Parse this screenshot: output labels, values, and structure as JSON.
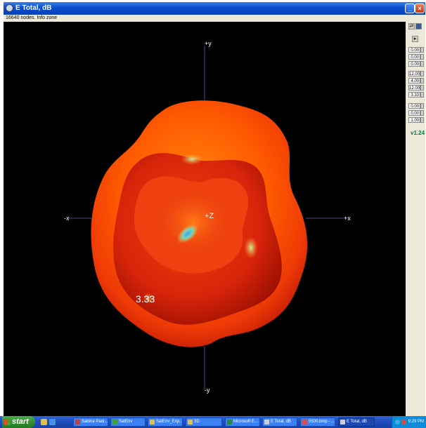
{
  "window": {
    "title": "E Total, dB",
    "status_text": "16640 nodes.  Info zone"
  },
  "plot": {
    "axes": {
      "pos_y": "+y",
      "neg_y": "-y",
      "neg_x": "-x",
      "pos_x": "+x",
      "pos_z": "+Z"
    },
    "value_label": "3.33",
    "colors": {
      "background": "#000000",
      "axis_line": "#4a4a8a",
      "lobe_outer": "#ff5a00",
      "lobe_inner": "#e82a06",
      "lobe_highlight": "#ff9a1e",
      "lobe_dark": "#8c0a00",
      "null_cyan": "#7ad6b8"
    }
  },
  "side_panel": {
    "fields": [
      {
        "value": "0.00"
      },
      {
        "value": "0.00"
      },
      {
        "value": "0.00"
      },
      {
        "value": "12.00"
      },
      {
        "value": "4.00"
      },
      {
        "value": "12.00"
      },
      {
        "value": "3.33"
      },
      {
        "value": "0.00"
      },
      {
        "value": "0.00"
      },
      {
        "value": "1.00"
      }
    ],
    "version": "v1.24"
  },
  "taskbar": {
    "start_label": "start",
    "tasks": [
      {
        "label": "Sabina Paoi...",
        "icon_color": "#c04040"
      },
      {
        "label": "SatEnv",
        "icon_color": "#40a040"
      },
      {
        "label": "SatEnv_Exp...",
        "icon_color": "#e0c050"
      },
      {
        "label": "3D",
        "icon_color": "#e0c050"
      },
      {
        "label": "Microsoft E...",
        "icon_color": "#2a8a3a"
      },
      {
        "label": "E Total, dB",
        "icon_color": "#c8d0e0"
      },
      {
        "label": "5500.bmp - ...",
        "icon_color": "#d05050"
      },
      {
        "label": "E Total, dB",
        "icon_color": "#c8d0e0"
      }
    ],
    "clock": "9:29 PM"
  }
}
